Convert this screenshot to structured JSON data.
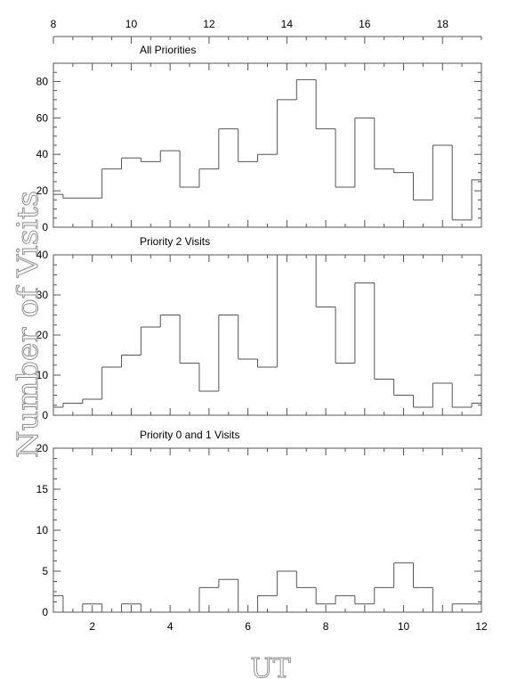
{
  "chart_data": {
    "type": "histogram",
    "ylabel": "Number of Visits",
    "xlabel": "UT",
    "bottom_axis": {
      "range": [
        1,
        12
      ],
      "ticks": [
        2,
        4,
        6,
        8,
        10,
        12
      ]
    },
    "top_axis": {
      "range": [
        8,
        19
      ],
      "ticks": [
        8,
        10,
        12,
        14,
        16,
        18
      ]
    },
    "panels": [
      {
        "title": "All Priorities",
        "ylim": [
          0,
          90
        ],
        "yticks": [
          0,
          20,
          40,
          60,
          80
        ],
        "bins_start": [
          1.0,
          1.25,
          2.25,
          2.75,
          3.25,
          3.75,
          4.25,
          4.75,
          5.25,
          5.75,
          6.25,
          6.75,
          7.25,
          7.75,
          8.25,
          8.75,
          9.25,
          9.75,
          10.25,
          10.75,
          11.25,
          11.75
        ],
        "bins_end": [
          1.25,
          2.25,
          2.75,
          3.25,
          3.75,
          4.25,
          4.75,
          5.25,
          5.75,
          6.25,
          6.75,
          7.25,
          7.75,
          8.25,
          8.75,
          9.25,
          9.75,
          10.25,
          10.75,
          11.25,
          11.75,
          12.0
        ],
        "counts": [
          18,
          16,
          32,
          38,
          36,
          42,
          22,
          32,
          54,
          36,
          40,
          70,
          81,
          54,
          22,
          60,
          32,
          30,
          15,
          45,
          4,
          26
        ]
      },
      {
        "title": "Priority 2 Visits",
        "ylim": [
          0,
          40
        ],
        "yticks": [
          0,
          10,
          20,
          30,
          40
        ],
        "bins_start": [
          1.0,
          1.25,
          1.75,
          2.25,
          2.75,
          3.25,
          3.75,
          4.25,
          4.75,
          5.25,
          5.75,
          6.25,
          6.75,
          7.25,
          7.75,
          8.25,
          8.75,
          9.25,
          9.75,
          10.25,
          10.75,
          11.25,
          11.75
        ],
        "bins_end": [
          1.25,
          1.75,
          2.25,
          2.75,
          3.25,
          3.75,
          4.25,
          4.75,
          5.25,
          5.75,
          6.25,
          6.75,
          7.25,
          7.75,
          8.25,
          8.75,
          9.25,
          9.75,
          10.25,
          10.75,
          11.25,
          11.75,
          12.0
        ],
        "counts": [
          2,
          3,
          4,
          12,
          15,
          22,
          25,
          13,
          6,
          25,
          14,
          12,
          40,
          40,
          27,
          13,
          33,
          9,
          5,
          2,
          8,
          2,
          3
        ]
      },
      {
        "title": "Priority 0 and 1 Visits",
        "ylim": [
          0,
          20
        ],
        "yticks": [
          0,
          5,
          10,
          15,
          20
        ],
        "bins_start": [
          1.0,
          1.25,
          1.75,
          2.25,
          2.75,
          3.25,
          3.75,
          4.25,
          4.75,
          5.25,
          5.75,
          6.25,
          6.75,
          7.25,
          7.75,
          8.25,
          8.75,
          9.25,
          9.75,
          10.25,
          10.75,
          11.25,
          11.75
        ],
        "bins_end": [
          1.25,
          1.75,
          2.25,
          2.75,
          3.25,
          3.75,
          4.25,
          4.75,
          5.25,
          5.75,
          6.25,
          6.75,
          7.25,
          7.75,
          8.25,
          8.75,
          9.25,
          9.75,
          10.25,
          10.75,
          11.25,
          11.75,
          12.0
        ],
        "counts": [
          2,
          0,
          1,
          0,
          1,
          0,
          0,
          0,
          3,
          4,
          0,
          2,
          5,
          3,
          1,
          2,
          1,
          3,
          6,
          3,
          0,
          1,
          1
        ]
      }
    ]
  }
}
